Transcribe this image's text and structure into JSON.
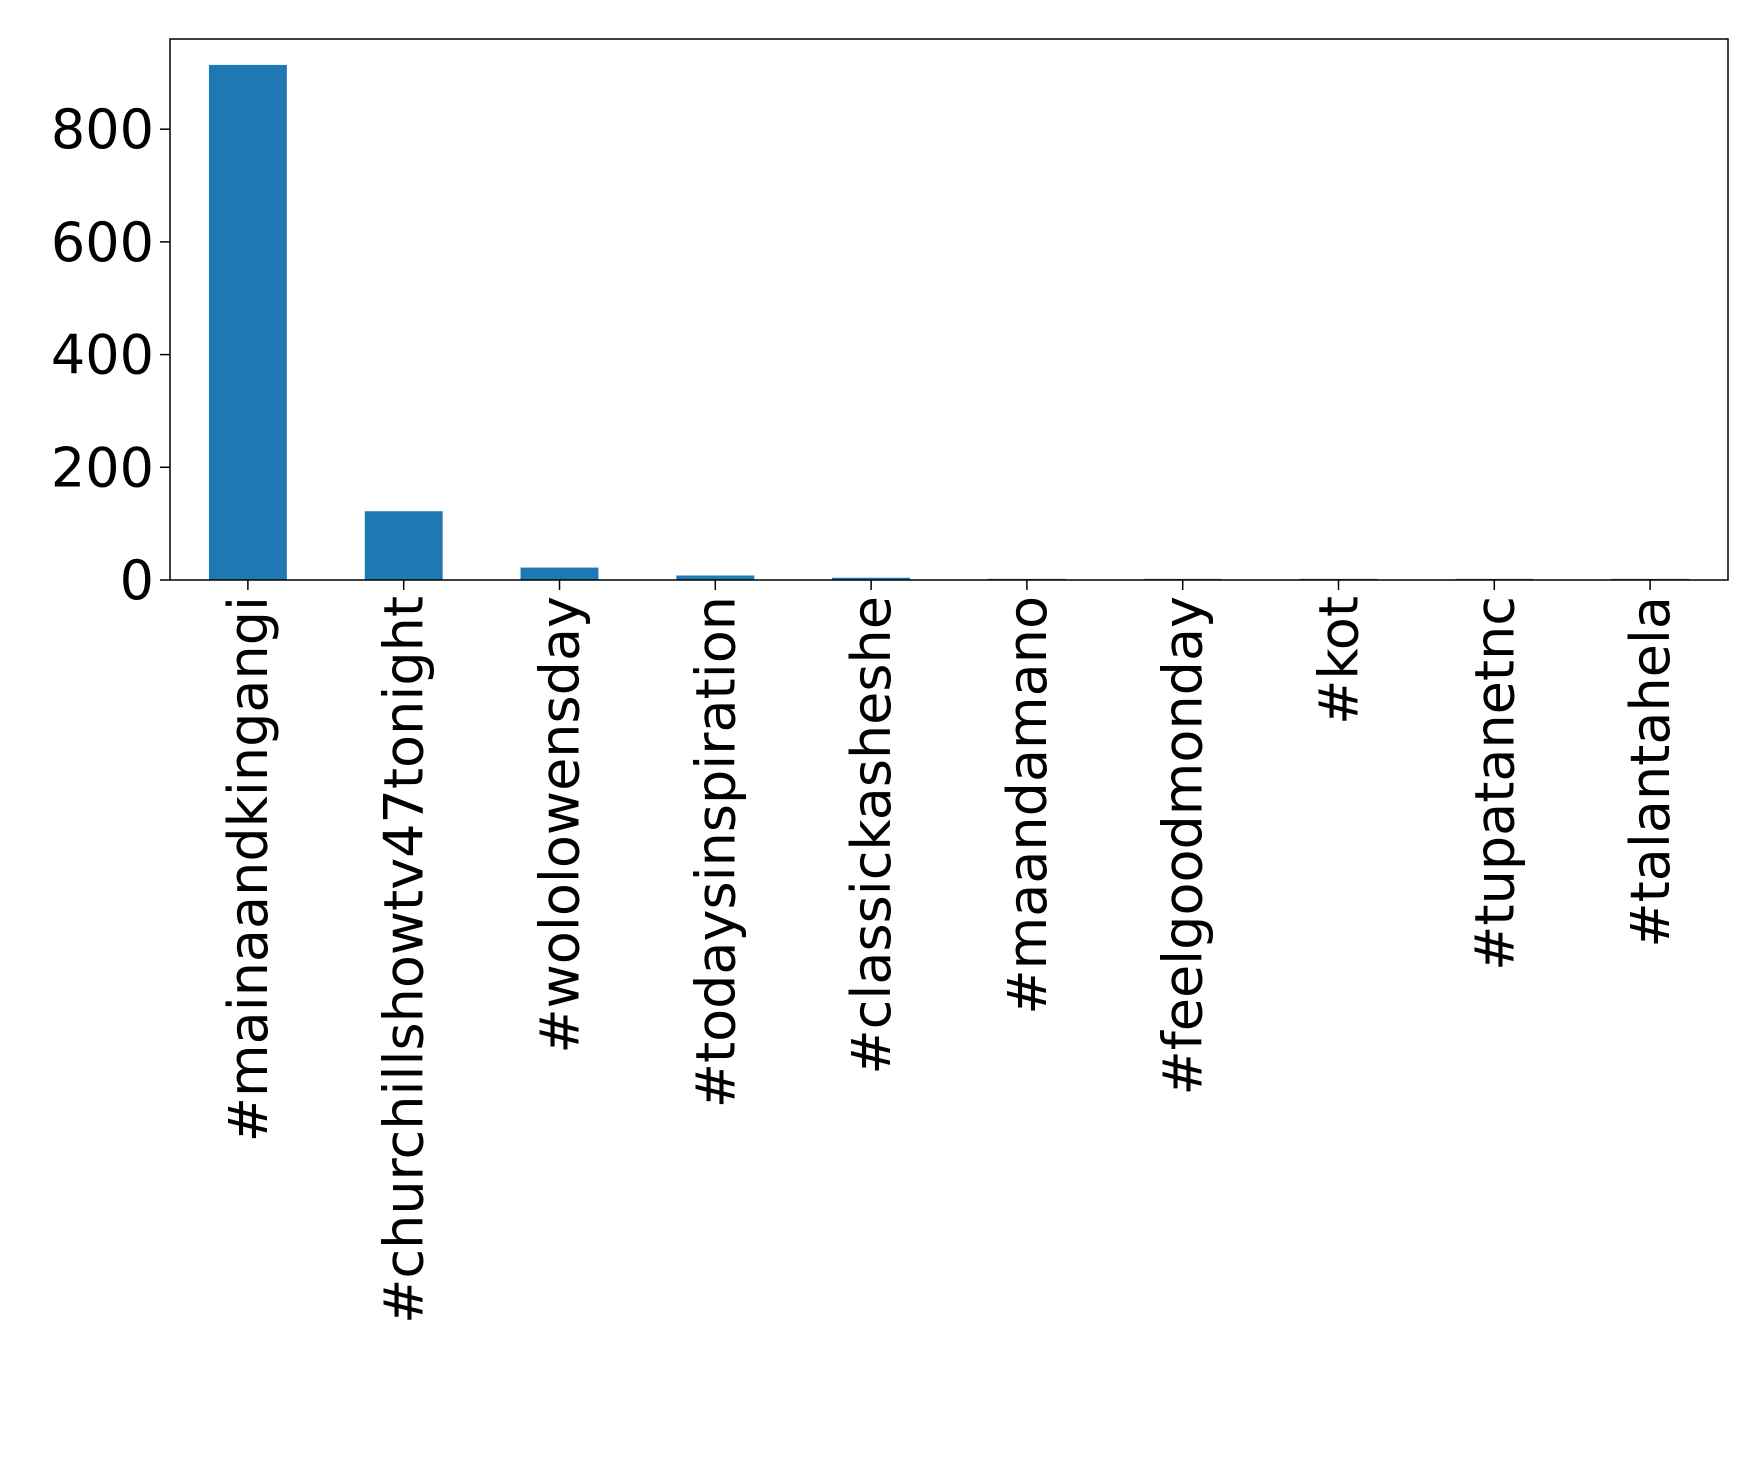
{
  "chart_data": {
    "type": "bar",
    "categories": [
      "#mainaandkingangi",
      "#churchillshowtv47tonight",
      "#wololowensday",
      "#todaysinspiration",
      "#classickasheshe",
      "#maandamano",
      "#feelgoodmonday",
      "#kot",
      "#tupatanetnc",
      "#talantahela"
    ],
    "values": [
      914,
      122,
      22,
      8,
      4,
      2,
      2,
      2,
      2,
      2
    ],
    "color": "#1f77b4",
    "ylim": [
      0,
      960
    ],
    "yticks": [
      0,
      200,
      400,
      600,
      800
    ],
    "grid": false
  }
}
